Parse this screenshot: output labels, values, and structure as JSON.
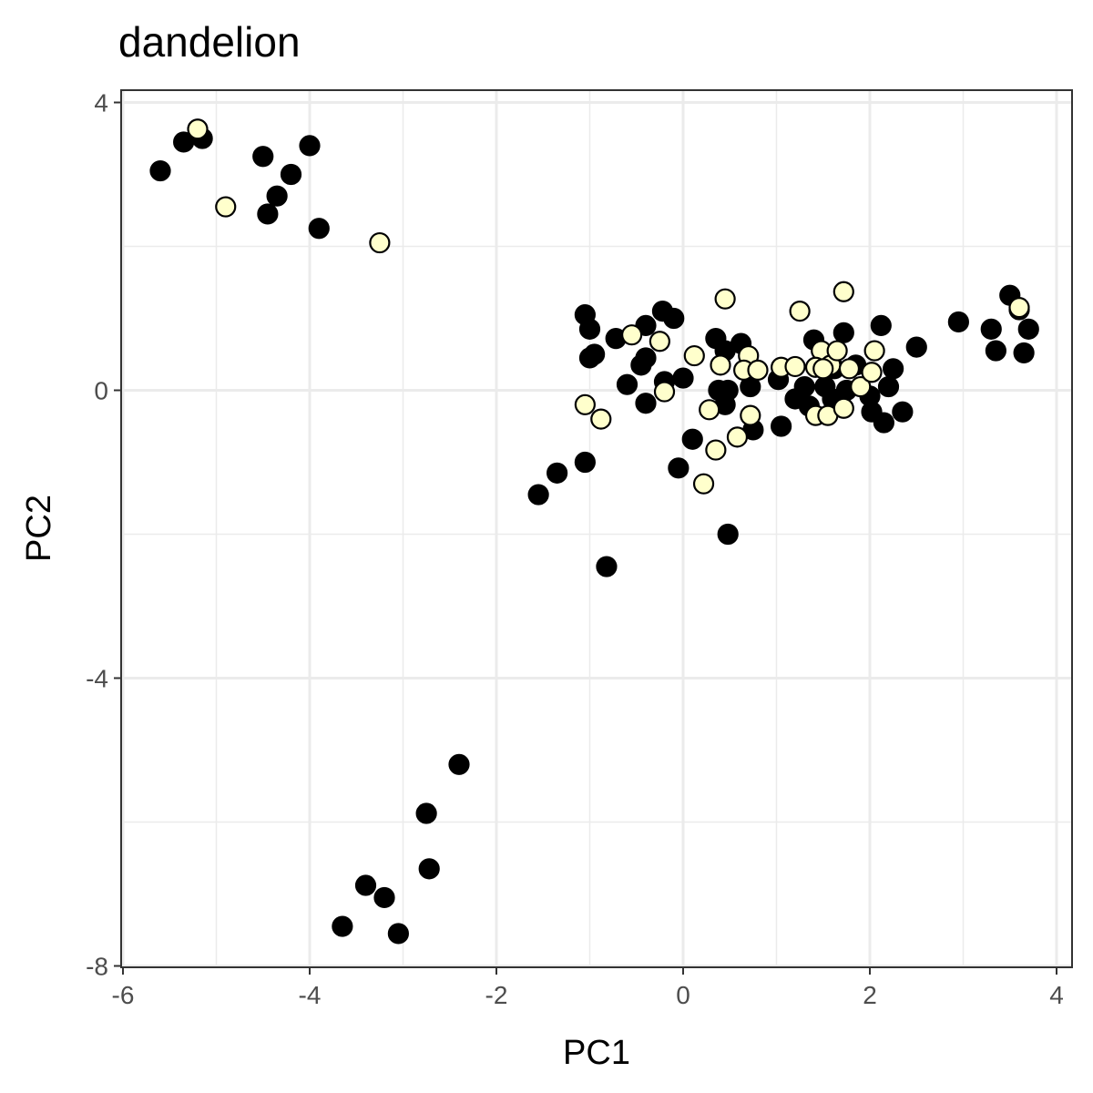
{
  "chart_data": {
    "type": "scatter",
    "title": "dandelion",
    "xlabel": "PC1",
    "ylabel": "PC2",
    "xlim": [
      -6,
      4
    ],
    "ylim": [
      -8,
      4
    ],
    "x_ticks": [
      -6,
      -4,
      -2,
      0,
      2,
      4
    ],
    "y_ticks": [
      -8,
      -4,
      0,
      4
    ],
    "x_tick_labels": [
      "-6",
      "-4",
      "-2",
      "0",
      "2",
      "4"
    ],
    "y_tick_labels": [
      "-8",
      "-4",
      "0",
      "4"
    ],
    "grid": true,
    "legend": "none",
    "colors": {
      "dark": "#000000",
      "light": "#ffffcc",
      "outline": "#000000",
      "grid": "#ebebeb",
      "panel_border": "#333333"
    },
    "series": [
      {
        "values": [
          [
            -5.6,
            3.05
          ],
          [
            -5.35,
            3.45
          ],
          [
            -5.15,
            3.5
          ],
          [
            -4.5,
            3.25
          ],
          [
            -4.2,
            3.0
          ],
          [
            -4.0,
            3.4
          ],
          [
            -4.35,
            2.7
          ],
          [
            -4.45,
            2.45
          ],
          [
            -3.9,
            2.25
          ],
          [
            -1.05,
            1.05
          ],
          [
            -1.0,
            0.85
          ],
          [
            -0.95,
            0.5
          ],
          [
            -1.0,
            0.45
          ],
          [
            -0.72,
            0.72
          ],
          [
            -0.4,
            0.9
          ],
          [
            -0.22,
            1.1
          ],
          [
            -0.45,
            0.35
          ],
          [
            -0.4,
            0.45
          ],
          [
            -0.6,
            0.08
          ],
          [
            -0.2,
            0.12
          ],
          [
            -0.4,
            -0.18
          ],
          [
            -0.1,
            1.0
          ],
          [
            0.0,
            0.17
          ],
          [
            0.35,
            0.72
          ],
          [
            0.45,
            0.55
          ],
          [
            0.62,
            0.65
          ],
          [
            0.38,
            0.0
          ],
          [
            0.48,
            0.0
          ],
          [
            0.45,
            -0.2
          ],
          [
            0.72,
            0.05
          ],
          [
            0.75,
            -0.55
          ],
          [
            0.1,
            -0.68
          ],
          [
            -0.05,
            -1.08
          ],
          [
            0.48,
            -2.0
          ],
          [
            -1.55,
            -1.45
          ],
          [
            -1.35,
            -1.15
          ],
          [
            -1.05,
            -1.0
          ],
          [
            -0.82,
            -2.45
          ],
          [
            1.02,
            0.15
          ],
          [
            1.3,
            0.05
          ],
          [
            1.2,
            -0.12
          ],
          [
            1.4,
            0.7
          ],
          [
            1.35,
            -0.22
          ],
          [
            1.52,
            0.05
          ],
          [
            1.62,
            0.3
          ],
          [
            1.72,
            0.8
          ],
          [
            1.6,
            -0.12
          ],
          [
            1.7,
            -0.22
          ],
          [
            1.85,
            0.35
          ],
          [
            1.75,
            0.0
          ],
          [
            1.05,
            -0.5
          ],
          [
            2.0,
            -0.08
          ],
          [
            2.12,
            0.9
          ],
          [
            2.25,
            0.3
          ],
          [
            2.02,
            -0.3
          ],
          [
            2.15,
            -0.45
          ],
          [
            2.2,
            0.05
          ],
          [
            2.35,
            -0.3
          ],
          [
            2.5,
            0.6
          ],
          [
            2.95,
            0.95
          ],
          [
            3.3,
            0.85
          ],
          [
            3.35,
            0.55
          ],
          [
            3.5,
            1.32
          ],
          [
            3.6,
            1.12
          ],
          [
            3.65,
            0.52
          ],
          [
            3.7,
            0.85
          ],
          [
            -2.4,
            -5.2
          ],
          [
            -2.75,
            -5.88
          ],
          [
            -2.72,
            -6.65
          ],
          [
            -3.4,
            -6.88
          ],
          [
            -3.2,
            -7.05
          ],
          [
            -3.65,
            -7.45
          ],
          [
            -3.05,
            -7.55
          ]
        ],
        "fill": "#000000"
      },
      {
        "values": [
          [
            -5.2,
            3.63
          ],
          [
            -4.9,
            2.55
          ],
          [
            -3.25,
            2.05
          ],
          [
            -0.55,
            0.77
          ],
          [
            -0.25,
            0.68
          ],
          [
            -1.05,
            -0.2
          ],
          [
            -0.88,
            -0.4
          ],
          [
            -0.2,
            -0.02
          ],
          [
            0.12,
            0.48
          ],
          [
            0.45,
            1.27
          ],
          [
            0.4,
            0.35
          ],
          [
            0.7,
            0.48
          ],
          [
            0.65,
            0.28
          ],
          [
            0.8,
            0.28
          ],
          [
            0.28,
            -0.27
          ],
          [
            0.35,
            -0.83
          ],
          [
            0.22,
            -1.3
          ],
          [
            0.58,
            -0.65
          ],
          [
            0.72,
            -0.35
          ],
          [
            1.05,
            0.32
          ],
          [
            1.2,
            0.33
          ],
          [
            1.25,
            1.1
          ],
          [
            1.48,
            0.55
          ],
          [
            1.58,
            0.35
          ],
          [
            1.42,
            0.32
          ],
          [
            1.5,
            0.3
          ],
          [
            1.65,
            0.55
          ],
          [
            1.72,
            1.37
          ],
          [
            1.78,
            0.3
          ],
          [
            1.9,
            0.05
          ],
          [
            2.02,
            0.25
          ],
          [
            2.05,
            0.55
          ],
          [
            1.42,
            -0.35
          ],
          [
            1.55,
            -0.35
          ],
          [
            1.72,
            -0.25
          ],
          [
            3.6,
            1.15
          ]
        ],
        "fill": "#ffffcc"
      }
    ]
  }
}
